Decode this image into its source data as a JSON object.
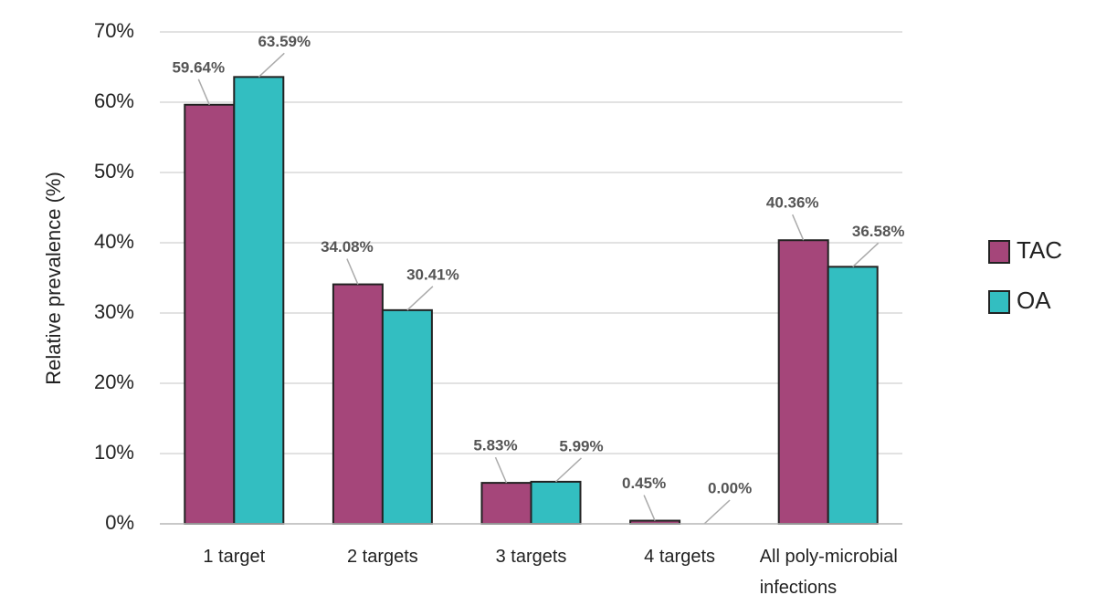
{
  "chart_data": {
    "type": "bar",
    "y_label": "Relative prevalence (%)",
    "categories": [
      "1 target",
      "2 targets",
      "3 targets",
      "4 targets",
      "All poly-microbial infections"
    ],
    "series": [
      {
        "name": "TAC",
        "color": "#a5467a",
        "values": [
          59.64,
          34.08,
          5.83,
          0.45,
          40.36
        ],
        "value_labels": [
          "59.64%",
          "34.08%",
          "5.83%",
          "0.45%",
          "40.36%"
        ]
      },
      {
        "name": "OA",
        "color": "#33bec1",
        "values": [
          63.59,
          30.41,
          5.99,
          0.0,
          36.58
        ],
        "value_labels": [
          "63.59%",
          "30.41%",
          "5.99%",
          "0.00%",
          "36.58%"
        ]
      }
    ],
    "ylim": [
      0,
      70
    ],
    "yticks": [
      {
        "value": 0,
        "label": "0%"
      },
      {
        "value": 10,
        "label": "10%"
      },
      {
        "value": 20,
        "label": "20%"
      },
      {
        "value": 30,
        "label": "30%"
      },
      {
        "value": 40,
        "label": "40%"
      },
      {
        "value": 50,
        "label": "50%"
      },
      {
        "value": 60,
        "label": "60%"
      },
      {
        "value": 70,
        "label": "70%"
      }
    ],
    "grid": true,
    "legend": "right"
  }
}
